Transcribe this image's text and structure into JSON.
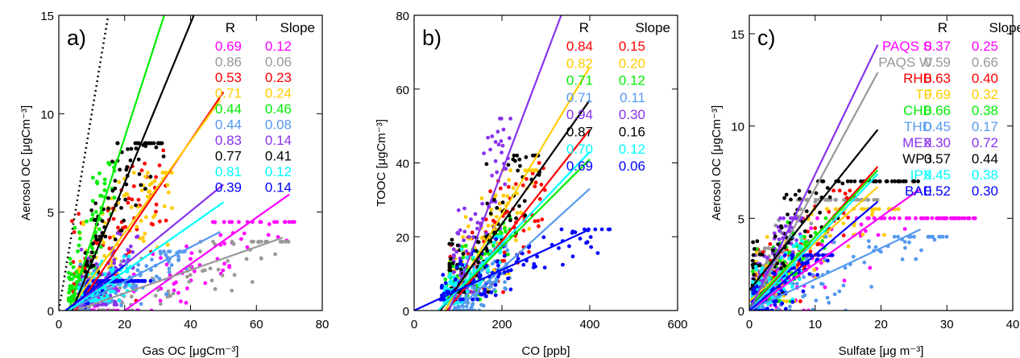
{
  "chart_data": [
    {
      "type": "scatter",
      "panel_label": "a)",
      "xlabel": "Gas OC [μgCm⁻³]",
      "ylabel": "Aerosol OC [μgCm⁻³]",
      "xlim": [
        0,
        80
      ],
      "ylim": [
        0,
        15
      ],
      "xticks": [
        0,
        20,
        40,
        60,
        80
      ],
      "yticks": [
        0,
        5,
        10,
        15
      ],
      "table_headers": [
        "R",
        "Slope"
      ],
      "reference_line": {
        "style": "dotted",
        "color": "#000000",
        "slope": 1
      },
      "series": [
        {
          "color": "#ff00ff",
          "R": "0.69",
          "slope": "0.12",
          "fit_start": [
            20,
            0
          ],
          "fit_end": [
            70,
            5.9
          ],
          "x_range": [
            5,
            72
          ],
          "y_range": [
            0,
            4.5
          ]
        },
        {
          "color": "#999999",
          "R": "0.86",
          "slope": "0.06",
          "fit_start": [
            5,
            0
          ],
          "fit_end": [
            68,
            3.7
          ],
          "x_range": [
            5,
            70
          ],
          "y_range": [
            0,
            3.5
          ]
        },
        {
          "color": "#ff0000",
          "R": "0.53",
          "slope": "0.23",
          "fit_start": [
            5,
            0
          ],
          "fit_end": [
            50,
            11.1
          ],
          "x_range": [
            4,
            34
          ],
          "y_range": [
            0.5,
            8.5
          ]
        },
        {
          "color": "#ffcc00",
          "R": "0.71",
          "slope": "0.24",
          "fit_start": [
            3,
            0
          ],
          "fit_end": [
            49,
            10.7
          ],
          "x_range": [
            6,
            36
          ],
          "y_range": [
            0.5,
            7
          ]
        },
        {
          "color": "#00ee00",
          "R": "0.44",
          "slope": "0.46",
          "fit_start": [
            3,
            0
          ],
          "fit_end": [
            32,
            15
          ],
          "x_range": [
            3,
            17
          ],
          "y_range": [
            0.5,
            7.5
          ]
        },
        {
          "color": "#5599ee",
          "R": "0.44",
          "slope": "0.08",
          "fit_start": [
            3,
            0
          ],
          "fit_end": [
            49,
            4
          ],
          "x_range": [
            6,
            40
          ],
          "y_range": [
            0,
            3
          ]
        },
        {
          "color": "#8833ee",
          "R": "0.83",
          "slope": "0.14",
          "fit_start": [
            3,
            0
          ],
          "fit_end": [
            50,
            6.4
          ],
          "x_range": [
            6,
            24
          ],
          "y_range": [
            0.3,
            4
          ]
        },
        {
          "color": "#000000",
          "R": "0.77",
          "slope": "0.41",
          "fit_start": [
            4,
            0
          ],
          "fit_end": [
            41,
            15
          ],
          "x_range": [
            8,
            32
          ],
          "y_range": [
            1,
            8.5
          ]
        },
        {
          "color": "#00ffff",
          "R": "0.81",
          "slope": "0.12",
          "fit_start": [
            3,
            0
          ],
          "fit_end": [
            50,
            5.5
          ],
          "x_range": [
            6,
            22
          ],
          "y_range": [
            0.5,
            3
          ]
        },
        {
          "color": "#0000ff",
          "R": "0.39",
          "slope": "0.14",
          "fit_start": [
            2,
            0
          ],
          "fit_end": [
            20,
            2.3
          ],
          "x_range": [
            8,
            28
          ],
          "y_range": [
            0,
            1.5
          ]
        }
      ]
    },
    {
      "type": "scatter",
      "panel_label": "b)",
      "xlabel": "CO [ppb]",
      "ylabel": "TOOC [μgCm⁻³]",
      "xlim": [
        0,
        600
      ],
      "ylim": [
        0,
        80
      ],
      "xticks": [
        0,
        200,
        400,
        600
      ],
      "yticks": [
        0,
        20,
        40,
        60,
        80
      ],
      "table_headers": [
        "R",
        "Slope"
      ],
      "series": [
        {
          "color": "#ff0000",
          "R": "0.84",
          "slope": "0.15",
          "fit_start": [
            75,
            0
          ],
          "fit_end": [
            400,
            49
          ],
          "x_range": [
            80,
            300
          ],
          "y_range": [
            5,
            40
          ]
        },
        {
          "color": "#ffcc00",
          "R": "0.82",
          "slope": "0.20",
          "fit_start": [
            70,
            0
          ],
          "fit_end": [
            400,
            66
          ],
          "x_range": [
            80,
            280
          ],
          "y_range": [
            5,
            38
          ]
        },
        {
          "color": "#00ee00",
          "R": "0.71",
          "slope": "0.12",
          "fit_start": [
            55,
            0
          ],
          "fit_end": [
            400,
            41
          ],
          "x_range": [
            70,
            220
          ],
          "y_range": [
            3,
            25
          ]
        },
        {
          "color": "#5599ee",
          "R": "0.71",
          "slope": "0.11",
          "fit_start": [
            95,
            0
          ],
          "fit_end": [
            400,
            33
          ],
          "x_range": [
            90,
            220
          ],
          "y_range": [
            0,
            18
          ]
        },
        {
          "color": "#8833ee",
          "R": "0.94",
          "slope": "0.30",
          "fit_start": [
            80,
            0
          ],
          "fit_end": [
            335,
            80
          ],
          "x_range": [
            90,
            220
          ],
          "y_range": [
            5,
            52
          ]
        },
        {
          "color": "#000000",
          "R": "0.87",
          "slope": "0.16",
          "fit_start": [
            60,
            0
          ],
          "fit_end": [
            400,
            57
          ],
          "x_range": [
            80,
            290
          ],
          "y_range": [
            5,
            42
          ]
        },
        {
          "color": "#00ffff",
          "R": "0.70",
          "slope": "0.12",
          "fit_start": [
            55,
            0
          ],
          "fit_end": [
            400,
            43
          ],
          "x_range": [
            70,
            200
          ],
          "y_range": [
            2,
            20
          ]
        },
        {
          "color": "#0000ff",
          "R": "0.69",
          "slope": "0.06",
          "fit_start": [
            0,
            0
          ],
          "fit_end": [
            400,
            22
          ],
          "x_range": [
            60,
            450
          ],
          "y_range": [
            3,
            22
          ]
        }
      ]
    },
    {
      "type": "scatter",
      "panel_label": "c)",
      "xlabel": "Sulfate [μg m⁻³]",
      "ylabel": "Aerosol OC [μgCm⁻³]",
      "xlim": [
        0,
        40
      ],
      "ylim": [
        0,
        16
      ],
      "xticks": [
        0,
        10,
        20,
        30,
        40
      ],
      "yticks": [
        0,
        5,
        10,
        15
      ],
      "table_headers": [
        "R",
        "Slope"
      ],
      "series": [
        {
          "name": "PAQS S",
          "color": "#ff00ff",
          "R": "0.37",
          "slope": "0.25",
          "fit_start": [
            0,
            0
          ],
          "fit_end": [
            26,
            6.6
          ],
          "x_range": [
            2,
            35
          ],
          "y_range": [
            0,
            5
          ]
        },
        {
          "name": "PAQS W",
          "color": "#999999",
          "R": "0.59",
          "slope": "0.66",
          "fit_start": [
            0,
            0
          ],
          "fit_end": [
            19.5,
            12.9
          ],
          "x_range": [
            1,
            20
          ],
          "y_range": [
            0,
            6
          ]
        },
        {
          "name": "RHB",
          "color": "#ff0000",
          "R": "0.63",
          "slope": "0.40",
          "fit_start": [
            0,
            0
          ],
          "fit_end": [
            19.5,
            7.8
          ],
          "x_range": [
            0.5,
            16
          ],
          "y_range": [
            0.5,
            6.5
          ]
        },
        {
          "name": "TF",
          "color": "#ffcc00",
          "R": "0.69",
          "slope": "0.32",
          "fit_start": [
            0,
            0.5
          ],
          "fit_end": [
            19.5,
            6.7
          ],
          "x_range": [
            0.5,
            23
          ],
          "y_range": [
            0.5,
            5.5
          ]
        },
        {
          "name": "CHB",
          "color": "#00ee00",
          "R": "0.66",
          "slope": "0.38",
          "fit_start": [
            0,
            0.2
          ],
          "fit_end": [
            19.5,
            7.6
          ],
          "x_range": [
            0.5,
            12
          ],
          "y_range": [
            0.5,
            5
          ]
        },
        {
          "name": "THD",
          "color": "#5599ee",
          "R": "0.45",
          "slope": "0.17",
          "fit_start": [
            0,
            0
          ],
          "fit_end": [
            26,
            4.4
          ],
          "x_range": [
            0.5,
            30
          ],
          "y_range": [
            0,
            4
          ]
        },
        {
          "name": "MEX",
          "color": "#8833ee",
          "R": "0.30",
          "slope": "0.72",
          "fit_start": [
            0,
            0
          ],
          "fit_end": [
            19.5,
            14.4
          ],
          "x_range": [
            0.5,
            8
          ],
          "y_range": [
            0.5,
            5
          ]
        },
        {
          "name": "WP3",
          "color": "#000000",
          "R": "0.57",
          "slope": "0.44",
          "fit_start": [
            0,
            1.1
          ],
          "fit_end": [
            19.5,
            9.8
          ],
          "x_range": [
            0.5,
            26
          ],
          "y_range": [
            1,
            7
          ]
        },
        {
          "name": "IPX",
          "color": "#00ffff",
          "R": "0.45",
          "slope": "0.38",
          "fit_start": [
            0,
            0
          ],
          "fit_end": [
            19.5,
            7.4
          ],
          "x_range": [
            0.5,
            8
          ],
          "y_range": [
            0,
            4
          ]
        },
        {
          "name": "BAE",
          "color": "#0000ff",
          "R": "0.52",
          "slope": "0.30",
          "fit_start": [
            0,
            0
          ],
          "fit_end": [
            19.5,
            5.9
          ],
          "x_range": [
            0.5,
            13
          ],
          "y_range": [
            0,
            3
          ]
        }
      ]
    }
  ]
}
